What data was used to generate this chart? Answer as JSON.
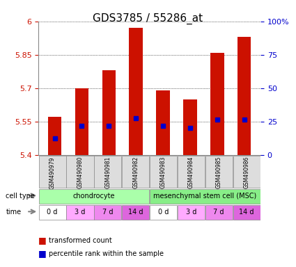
{
  "title": "GDS3785 / 55286_at",
  "samples": [
    "GSM490979",
    "GSM490980",
    "GSM490981",
    "GSM490982",
    "GSM490983",
    "GSM490984",
    "GSM490985",
    "GSM490986"
  ],
  "bar_values": [
    5.57,
    5.7,
    5.78,
    5.97,
    5.69,
    5.65,
    5.86,
    5.93
  ],
  "bar_base": 5.4,
  "percentile_values": [
    5.475,
    5.53,
    5.53,
    5.565,
    5.53,
    5.52,
    5.56,
    5.56
  ],
  "ylim": [
    5.4,
    6.0
  ],
  "yticks": [
    5.4,
    5.55,
    5.7,
    5.85,
    6.0
  ],
  "ytick_labels": [
    "5.4",
    "5.55",
    "5.7",
    "5.85",
    "6"
  ],
  "right_yticks": [
    0,
    0.25,
    0.5,
    0.75,
    1.0
  ],
  "right_ytick_labels": [
    "0",
    "25",
    "50",
    "75",
    "100%"
  ],
  "bar_color": "#cc1100",
  "percentile_color": "#0000cc",
  "grid_color": "#000000",
  "cell_type_groups": [
    {
      "label": "chondrocyte",
      "start": 0,
      "end": 4,
      "color": "#aaffaa"
    },
    {
      "label": "mesenchymal stem cell (MSC)",
      "start": 4,
      "end": 8,
      "color": "#88ee88"
    }
  ],
  "time_labels": [
    "0 d",
    "3 d",
    "7 d",
    "14 d",
    "0 d",
    "3 d",
    "7 d",
    "14 d"
  ],
  "time_colors": [
    "#ffffff",
    "#ffaaff",
    "#ee88ee",
    "#dd66dd",
    "#ffffff",
    "#ffaaff",
    "#ee88ee",
    "#dd66dd"
  ],
  "legend_items": [
    {
      "label": "transformed count",
      "color": "#cc1100"
    },
    {
      "label": "percentile rank within the sample",
      "color": "#0000cc"
    }
  ],
  "bar_width": 0.5,
  "xlabel_fontsize": 7,
  "ylabel_color_left": "#cc1100",
  "ylabel_color_right": "#0000cc",
  "title_fontsize": 11
}
